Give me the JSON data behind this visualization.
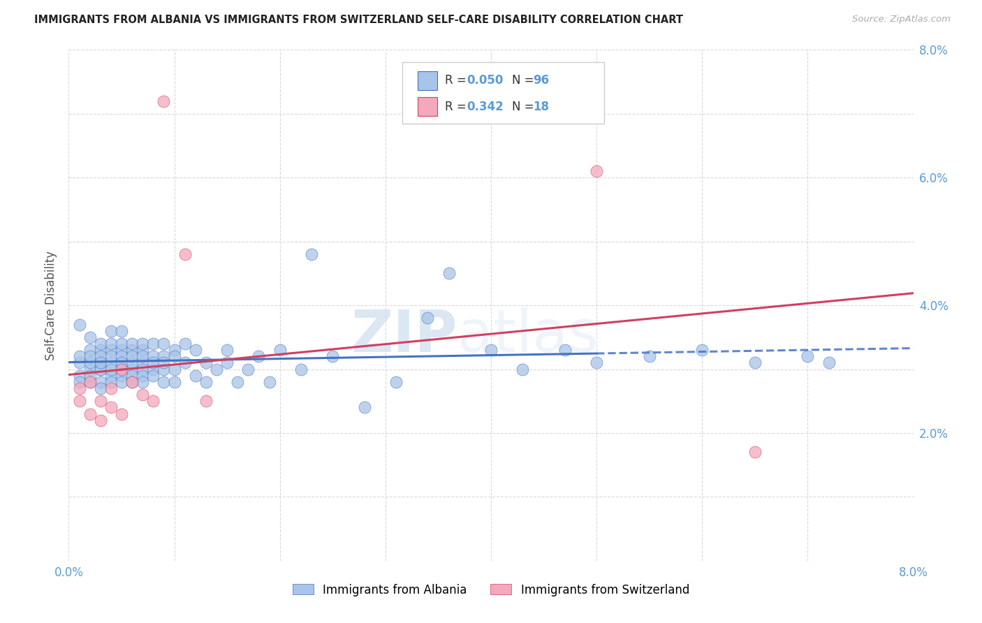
{
  "title": "IMMIGRANTS FROM ALBANIA VS IMMIGRANTS FROM SWITZERLAND SELF-CARE DISABILITY CORRELATION CHART",
  "source": "Source: ZipAtlas.com",
  "ylabel": "Self-Care Disability",
  "xlim": [
    0.0,
    0.08
  ],
  "ylim": [
    0.0,
    0.08
  ],
  "color_albania": "#a8c4e8",
  "color_switzerland": "#f4a8bc",
  "line_color_albania": "#4472c4",
  "line_color_switzerland": "#d04060",
  "albania_x": [
    0.001,
    0.001,
    0.001,
    0.001,
    0.001,
    0.002,
    0.002,
    0.002,
    0.002,
    0.002,
    0.002,
    0.002,
    0.003,
    0.003,
    0.003,
    0.003,
    0.003,
    0.003,
    0.003,
    0.003,
    0.003,
    0.004,
    0.004,
    0.004,
    0.004,
    0.004,
    0.004,
    0.004,
    0.004,
    0.005,
    0.005,
    0.005,
    0.005,
    0.005,
    0.005,
    0.005,
    0.005,
    0.005,
    0.006,
    0.006,
    0.006,
    0.006,
    0.006,
    0.006,
    0.006,
    0.007,
    0.007,
    0.007,
    0.007,
    0.007,
    0.007,
    0.007,
    0.008,
    0.008,
    0.008,
    0.008,
    0.008,
    0.009,
    0.009,
    0.009,
    0.009,
    0.009,
    0.01,
    0.01,
    0.01,
    0.01,
    0.011,
    0.011,
    0.012,
    0.012,
    0.013,
    0.013,
    0.014,
    0.015,
    0.015,
    0.016,
    0.017,
    0.018,
    0.019,
    0.02,
    0.022,
    0.023,
    0.025,
    0.028,
    0.031,
    0.034,
    0.036,
    0.04,
    0.043,
    0.047,
    0.05,
    0.055,
    0.06,
    0.065,
    0.07,
    0.072
  ],
  "albania_y": [
    0.037,
    0.031,
    0.029,
    0.032,
    0.028,
    0.03,
    0.031,
    0.033,
    0.028,
    0.035,
    0.032,
    0.029,
    0.03,
    0.031,
    0.033,
    0.028,
    0.034,
    0.032,
    0.03,
    0.027,
    0.031,
    0.033,
    0.029,
    0.031,
    0.034,
    0.03,
    0.032,
    0.028,
    0.036,
    0.03,
    0.033,
    0.031,
    0.029,
    0.032,
    0.034,
    0.028,
    0.036,
    0.031,
    0.03,
    0.033,
    0.031,
    0.029,
    0.034,
    0.028,
    0.032,
    0.031,
    0.03,
    0.033,
    0.029,
    0.032,
    0.034,
    0.028,
    0.03,
    0.032,
    0.031,
    0.029,
    0.034,
    0.03,
    0.032,
    0.028,
    0.034,
    0.031,
    0.033,
    0.03,
    0.032,
    0.028,
    0.031,
    0.034,
    0.029,
    0.033,
    0.031,
    0.028,
    0.03,
    0.033,
    0.031,
    0.028,
    0.03,
    0.032,
    0.028,
    0.033,
    0.03,
    0.048,
    0.032,
    0.024,
    0.028,
    0.038,
    0.045,
    0.033,
    0.03,
    0.033,
    0.031,
    0.032,
    0.033,
    0.031,
    0.032,
    0.031
  ],
  "switzerland_x": [
    0.001,
    0.001,
    0.002,
    0.002,
    0.003,
    0.003,
    0.004,
    0.004,
    0.005,
    0.005,
    0.006,
    0.007,
    0.008,
    0.009,
    0.011,
    0.013,
    0.05,
    0.065
  ],
  "switzerland_y": [
    0.027,
    0.025,
    0.023,
    0.028,
    0.022,
    0.025,
    0.024,
    0.027,
    0.023,
    0.03,
    0.028,
    0.026,
    0.025,
    0.072,
    0.048,
    0.025,
    0.061,
    0.017
  ],
  "albania_R": 0.05,
  "albania_N": 96,
  "switzerland_R": 0.342,
  "switzerland_N": 18,
  "watermark_zip": "ZIP",
  "watermark_atlas": "atlas"
}
